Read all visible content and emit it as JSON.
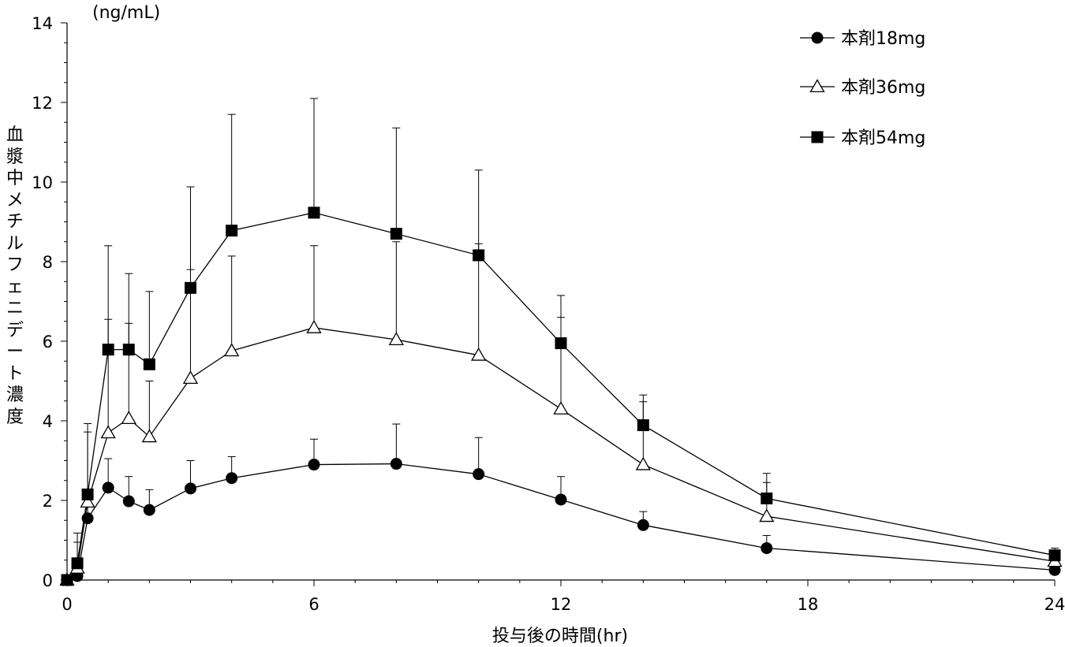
{
  "chart_data": {
    "type": "line",
    "ylabel": "血漿中メチルフェニデート濃度",
    "yunit": "(ng/mL)",
    "xlabel": "投与後の時間(hr)",
    "xlim": [
      0,
      24
    ],
    "ylim": [
      0,
      14
    ],
    "xticks": [
      0,
      6,
      12,
      18,
      24
    ],
    "yticks": [
      0,
      2,
      4,
      6,
      8,
      10,
      12,
      14
    ],
    "grid": false,
    "legend_position": "top-right",
    "x": [
      0,
      0.25,
      0.5,
      1,
      1.5,
      2,
      3,
      4,
      6,
      8,
      10,
      12,
      14,
      17,
      24
    ],
    "series": [
      {
        "name": "本剤18mg",
        "marker": "filled-circle",
        "values": [
          0,
          0.1,
          1.55,
          2.32,
          1.98,
          1.76,
          2.3,
          2.56,
          2.9,
          2.92,
          2.66,
          2.02,
          1.38,
          0.8,
          0.25
        ],
        "error_upper": [
          0,
          0.4,
          2.1,
          3.05,
          2.6,
          2.27,
          3.0,
          3.1,
          3.54,
          3.92,
          3.58,
          2.6,
          1.72,
          1.12,
          0.35
        ]
      },
      {
        "name": "本剤36mg",
        "marker": "open-triangle",
        "values": [
          0,
          0.3,
          1.96,
          3.7,
          4.06,
          3.6,
          5.07,
          5.76,
          6.34,
          6.04,
          5.65,
          4.3,
          2.9,
          1.6,
          0.47
        ],
        "error_upper": [
          0,
          1.18,
          3.72,
          6.55,
          6.45,
          5.0,
          7.8,
          8.14,
          8.4,
          8.5,
          8.45,
          6.6,
          4.48,
          2.45,
          0.6
        ]
      },
      {
        "name": "本剤54mg",
        "marker": "filled-square",
        "values": [
          0,
          0.42,
          2.15,
          5.79,
          5.79,
          5.42,
          7.34,
          8.78,
          9.23,
          8.7,
          8.16,
          5.95,
          3.89,
          2.05,
          0.62
        ],
        "error_upper": [
          0,
          0.95,
          3.93,
          8.4,
          7.7,
          7.25,
          9.88,
          11.7,
          12.1,
          11.36,
          10.3,
          7.15,
          4.65,
          2.68,
          0.8
        ]
      }
    ]
  }
}
